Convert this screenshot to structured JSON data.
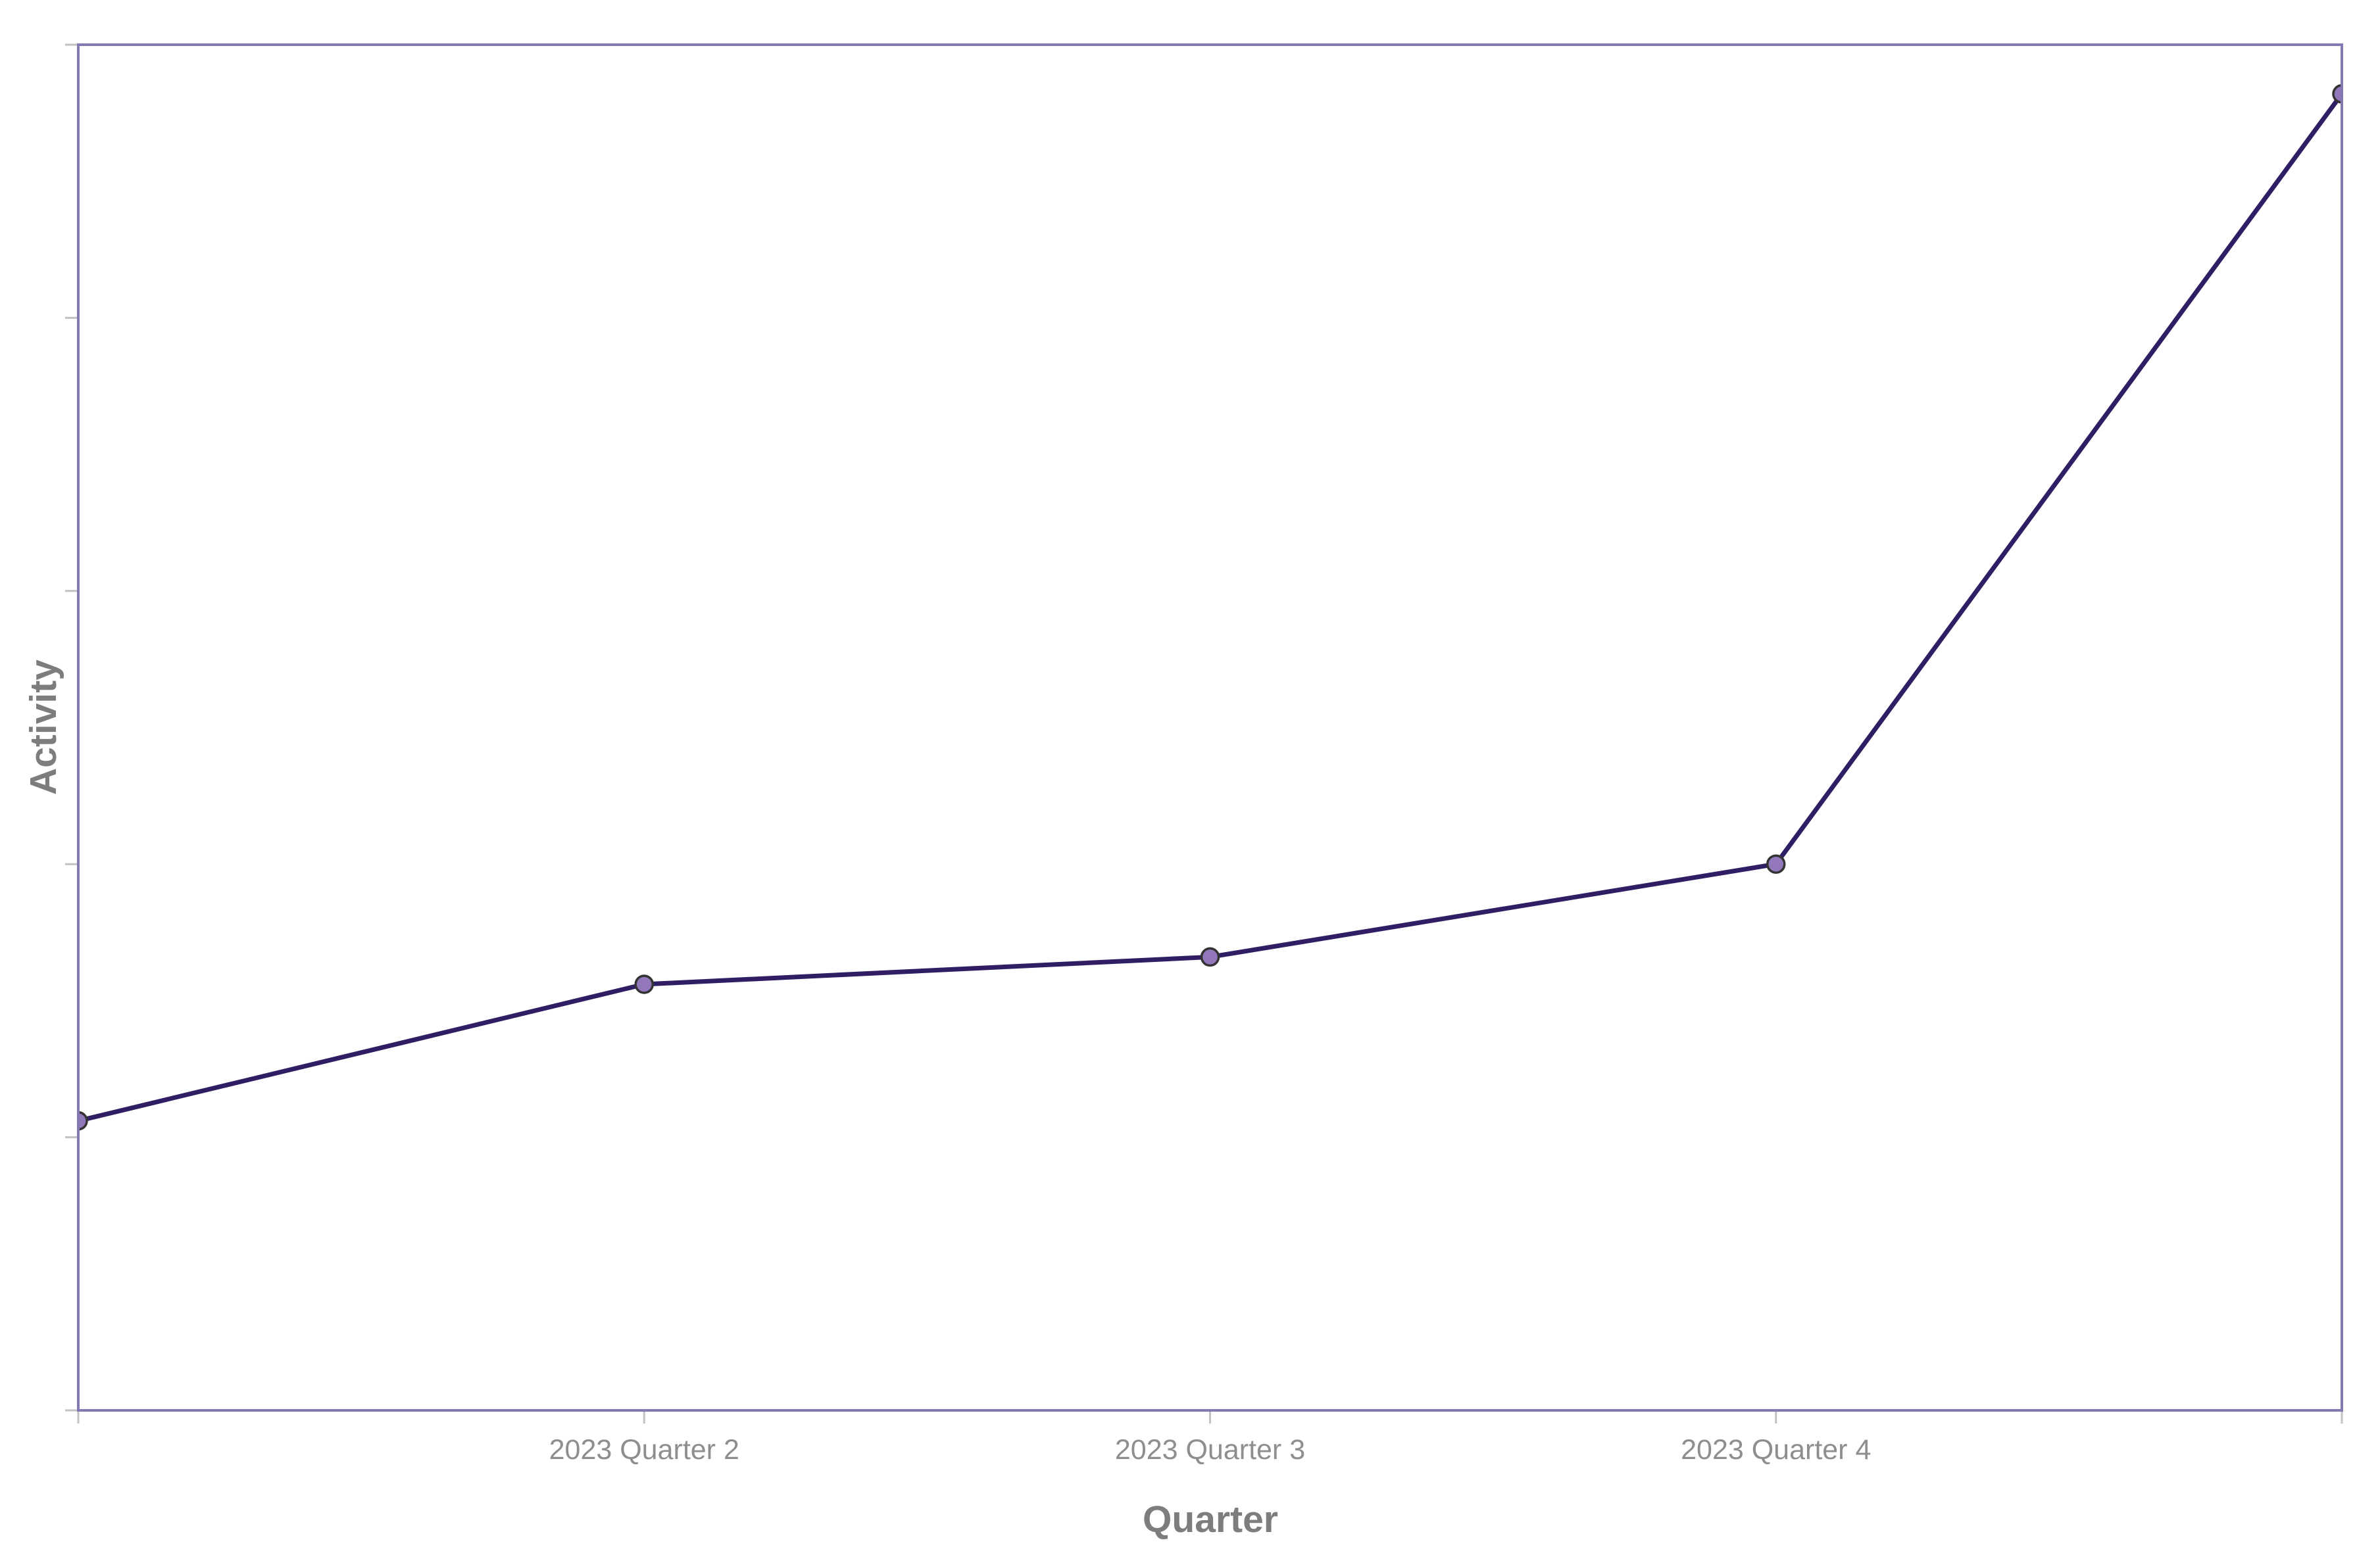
{
  "chart_data": {
    "type": "line",
    "title": "",
    "xlabel": "Quarter",
    "ylabel": "Activity",
    "x_tick_labels": [
      "",
      "2023 Quarter 2",
      "2023 Quarter 3",
      "2023 Quarter 4",
      ""
    ],
    "series": [
      {
        "name": "Activity",
        "values": [
          10.6,
          15.6,
          16.6,
          20.0,
          48.2
        ]
      }
    ],
    "ylim": [
      0,
      50
    ],
    "y_tick_count": 6,
    "y_tick_labels": [],
    "grid": false,
    "legend": false,
    "line_color": "#2f1e64",
    "marker_color": "#9377bb",
    "marker_edge_color": "#333333",
    "axis_border_color": "#8579b1",
    "tick_color": "#c2c2c2",
    "tick_label_color": "#8e8e8e",
    "axis_title_color": "#7d7d7d",
    "background_color": "#ffffff"
  }
}
